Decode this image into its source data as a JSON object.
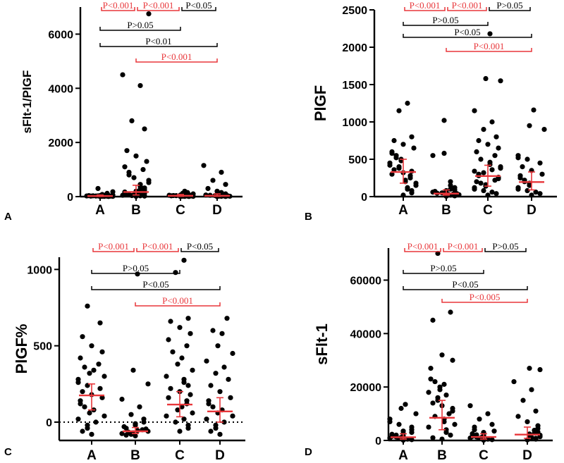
{
  "colors": {
    "red": "#e8363a",
    "black": "#000000"
  },
  "chart_data": [
    {
      "type": "scatter",
      "panel": "A",
      "ylabel": "sFlt-1/PlGF",
      "categories": [
        "A",
        "B",
        "C",
        "D"
      ],
      "ylim": [
        0,
        7000
      ],
      "yticks": [
        0,
        2000,
        4000,
        6000
      ],
      "ytick_labels": [
        "0",
        "2000",
        "4000",
        "6000"
      ],
      "medians": [
        20,
        170,
        30,
        30
      ],
      "iqr": [
        [
          5,
          60
        ],
        [
          60,
          420
        ],
        [
          10,
          80
        ],
        [
          10,
          100
        ]
      ],
      "significance": [
        {
          "label": "P<0.001",
          "from": "A",
          "to": "B",
          "color": "red"
        },
        {
          "label": "P<0.001",
          "from": "B",
          "to": "C",
          "color": "red"
        },
        {
          "label": "P<0.05",
          "from": "C",
          "to": "D",
          "color": "black"
        },
        {
          "label": "P>0.05",
          "from": "A",
          "to": "C",
          "color": "black"
        },
        {
          "label": "P<0.01",
          "from": "A",
          "to": "D",
          "color": "black"
        },
        {
          "label": "P<0.001",
          "from": "B",
          "to": "D",
          "color": "red"
        }
      ],
      "points": [
        [
          2,
          5,
          8,
          10,
          12,
          15,
          18,
          20,
          22,
          25,
          28,
          30,
          35,
          40,
          45,
          50,
          60,
          80,
          120,
          180,
          300
        ],
        [
          10,
          20,
          30,
          40,
          50,
          60,
          70,
          80,
          100,
          120,
          150,
          170,
          200,
          240,
          280,
          320,
          380,
          450,
          520,
          600,
          700,
          800,
          900,
          1000,
          1100,
          1300,
          1500,
          1700,
          2500,
          2800,
          4100,
          4500,
          6750
        ],
        [
          2,
          5,
          8,
          10,
          15,
          20,
          25,
          30,
          35,
          40,
          50,
          60,
          70,
          80,
          100,
          120,
          150,
          200
        ],
        [
          2,
          5,
          10,
          15,
          20,
          25,
          30,
          40,
          50,
          60,
          80,
          100,
          150,
          200,
          300,
          450,
          600,
          900,
          1150
        ]
      ]
    },
    {
      "type": "scatter",
      "panel": "B",
      "ylabel": "PlGF",
      "categories": [
        "A",
        "B",
        "C",
        "D"
      ],
      "ylim": [
        0,
        2500
      ],
      "yticks": [
        0,
        500,
        1000,
        1500,
        2000,
        2500
      ],
      "ytick_labels": [
        "0",
        "500",
        "1000",
        "1500",
        "2000",
        "2500"
      ],
      "medians": [
        330,
        40,
        275,
        195
      ],
      "iqr": [
        [
          180,
          500
        ],
        [
          20,
          90
        ],
        [
          140,
          420
        ],
        [
          90,
          330
        ]
      ],
      "significance": [
        {
          "label": "P<0.001",
          "from": "A",
          "to": "B",
          "color": "red"
        },
        {
          "label": "P<0.001",
          "from": "B",
          "to": "C",
          "color": "red"
        },
        {
          "label": "P>0.05",
          "from": "C",
          "to": "D",
          "color": "black"
        },
        {
          "label": "P>0.05",
          "from": "A",
          "to": "C",
          "color": "black"
        },
        {
          "label": "P<0.05",
          "from": "A",
          "to": "D",
          "color": "black"
        },
        {
          "label": "P<0.001",
          "from": "B",
          "to": "D",
          "color": "red"
        }
      ],
      "points": [
        [
          20,
          50,
          80,
          100,
          120,
          150,
          180,
          200,
          220,
          250,
          280,
          300,
          320,
          340,
          360,
          380,
          400,
          420,
          450,
          480,
          500,
          520,
          550,
          580,
          600,
          650,
          700,
          750,
          800,
          1150,
          1250
        ],
        [
          5,
          10,
          15,
          20,
          25,
          30,
          35,
          40,
          45,
          50,
          60,
          70,
          80,
          90,
          100,
          120,
          150,
          200,
          550,
          580,
          1020
        ],
        [
          20,
          40,
          60,
          80,
          100,
          120,
          140,
          160,
          180,
          200,
          220,
          240,
          260,
          280,
          300,
          320,
          340,
          360,
          380,
          400,
          430,
          460,
          500,
          550,
          600,
          650,
          700,
          750,
          800,
          900,
          1000,
          1150,
          1550,
          1580,
          2180
        ],
        [
          20,
          40,
          60,
          80,
          100,
          120,
          150,
          180,
          200,
          220,
          250,
          280,
          300,
          350,
          400,
          450,
          500,
          520,
          550,
          900,
          950,
          1160
        ]
      ]
    },
    {
      "type": "scatter",
      "panel": "C",
      "ylabel": "PlGF%",
      "categories": [
        "A",
        "B",
        "C",
        "D"
      ],
      "ylim": [
        -120,
        1080
      ],
      "yticks": [
        0,
        500,
        1000
      ],
      "ytick_labels": [
        "0",
        "500",
        "1000"
      ],
      "reference_line": 0,
      "medians": [
        175,
        -60,
        115,
        70
      ],
      "iqr": [
        [
          80,
          250
        ],
        [
          -75,
          -35
        ],
        [
          35,
          200
        ],
        [
          0,
          160
        ]
      ],
      "significance": [
        {
          "label": "P<0.001",
          "from": "A",
          "to": "B",
          "color": "red"
        },
        {
          "label": "P<0.001",
          "from": "B",
          "to": "C",
          "color": "red"
        },
        {
          "label": "P<0.05",
          "from": "C",
          "to": "D",
          "color": "black"
        },
        {
          "label": "P>0.05",
          "from": "A",
          "to": "C",
          "color": "black"
        },
        {
          "label": "P<0.05",
          "from": "A",
          "to": "D",
          "color": "black"
        },
        {
          "label": "P<0.001",
          "from": "B",
          "to": "D",
          "color": "red"
        }
      ],
      "points": [
        [
          -80,
          -60,
          -40,
          -20,
          0,
          20,
          40,
          60,
          80,
          100,
          120,
          140,
          160,
          180,
          200,
          220,
          240,
          260,
          280,
          300,
          320,
          340,
          360,
          380,
          420,
          460,
          500,
          560,
          650,
          760
        ],
        [
          -90,
          -85,
          -80,
          -75,
          -70,
          -65,
          -60,
          -55,
          -50,
          -45,
          -40,
          -30,
          -20,
          -10,
          0,
          20,
          50,
          100,
          150,
          250,
          340,
          970
        ],
        [
          -60,
          -40,
          -20,
          0,
          20,
          40,
          60,
          80,
          100,
          120,
          140,
          160,
          180,
          200,
          220,
          240,
          260,
          280,
          300,
          340,
          380,
          420,
          460,
          500,
          540,
          580,
          620,
          660,
          680,
          980,
          1060
        ],
        [
          -80,
          -60,
          -40,
          -20,
          0,
          20,
          40,
          60,
          80,
          100,
          120,
          140,
          160,
          200,
          240,
          280,
          320,
          360,
          400,
          450,
          500,
          580,
          600,
          680
        ]
      ]
    },
    {
      "type": "scatter",
      "panel": "D",
      "ylabel": "sFlt-1",
      "categories": [
        "A",
        "B",
        "C",
        "D"
      ],
      "ylim": [
        0,
        72000
      ],
      "yticks": [
        0,
        20000,
        40000,
        60000
      ],
      "ytick_labels": [
        "0",
        "20000",
        "40000",
        "60000"
      ],
      "medians": [
        1200,
        8500,
        1300,
        2200
      ],
      "iqr": [
        [
          500,
          2500
        ],
        [
          4000,
          15000
        ],
        [
          500,
          2500
        ],
        [
          800,
          5000
        ]
      ],
      "significance": [
        {
          "label": "P<0.001",
          "from": "A",
          "to": "B",
          "color": "red"
        },
        {
          "label": "P<0.001",
          "from": "B",
          "to": "C",
          "color": "red"
        },
        {
          "label": "P>0.05",
          "from": "C",
          "to": "D",
          "color": "black"
        },
        {
          "label": "P>0.05",
          "from": "A",
          "to": "C",
          "color": "black"
        },
        {
          "label": "P<0.05",
          "from": "A",
          "to": "D",
          "color": "black"
        },
        {
          "label": "P<0.005",
          "from": "B",
          "to": "D",
          "color": "red"
        }
      ],
      "points": [
        [
          100,
          300,
          500,
          700,
          900,
          1100,
          1300,
          1500,
          1700,
          2000,
          2300,
          2600,
          3000,
          3500,
          4000,
          5000,
          6000,
          7000,
          8000,
          10000,
          12000,
          13500
        ],
        [
          500,
          1000,
          2000,
          3000,
          4000,
          5000,
          6000,
          7000,
          8000,
          9000,
          10000,
          11000,
          12000,
          13000,
          14000,
          15000,
          16000,
          17000,
          18000,
          19000,
          20000,
          21000,
          22000,
          23000,
          27000,
          30000,
          32000,
          45000,
          48000,
          70000
        ],
        [
          100,
          300,
          500,
          700,
          900,
          1100,
          1300,
          1500,
          1800,
          2100,
          2500,
          3000,
          3500,
          4000,
          5000,
          6000,
          8000,
          10000,
          13000
        ],
        [
          200,
          500,
          800,
          1100,
          1400,
          1700,
          2000,
          2400,
          2800,
          3200,
          3800,
          4500,
          5500,
          7000,
          9000,
          11000,
          15000,
          19000,
          22000,
          26500,
          27000
        ]
      ]
    }
  ]
}
